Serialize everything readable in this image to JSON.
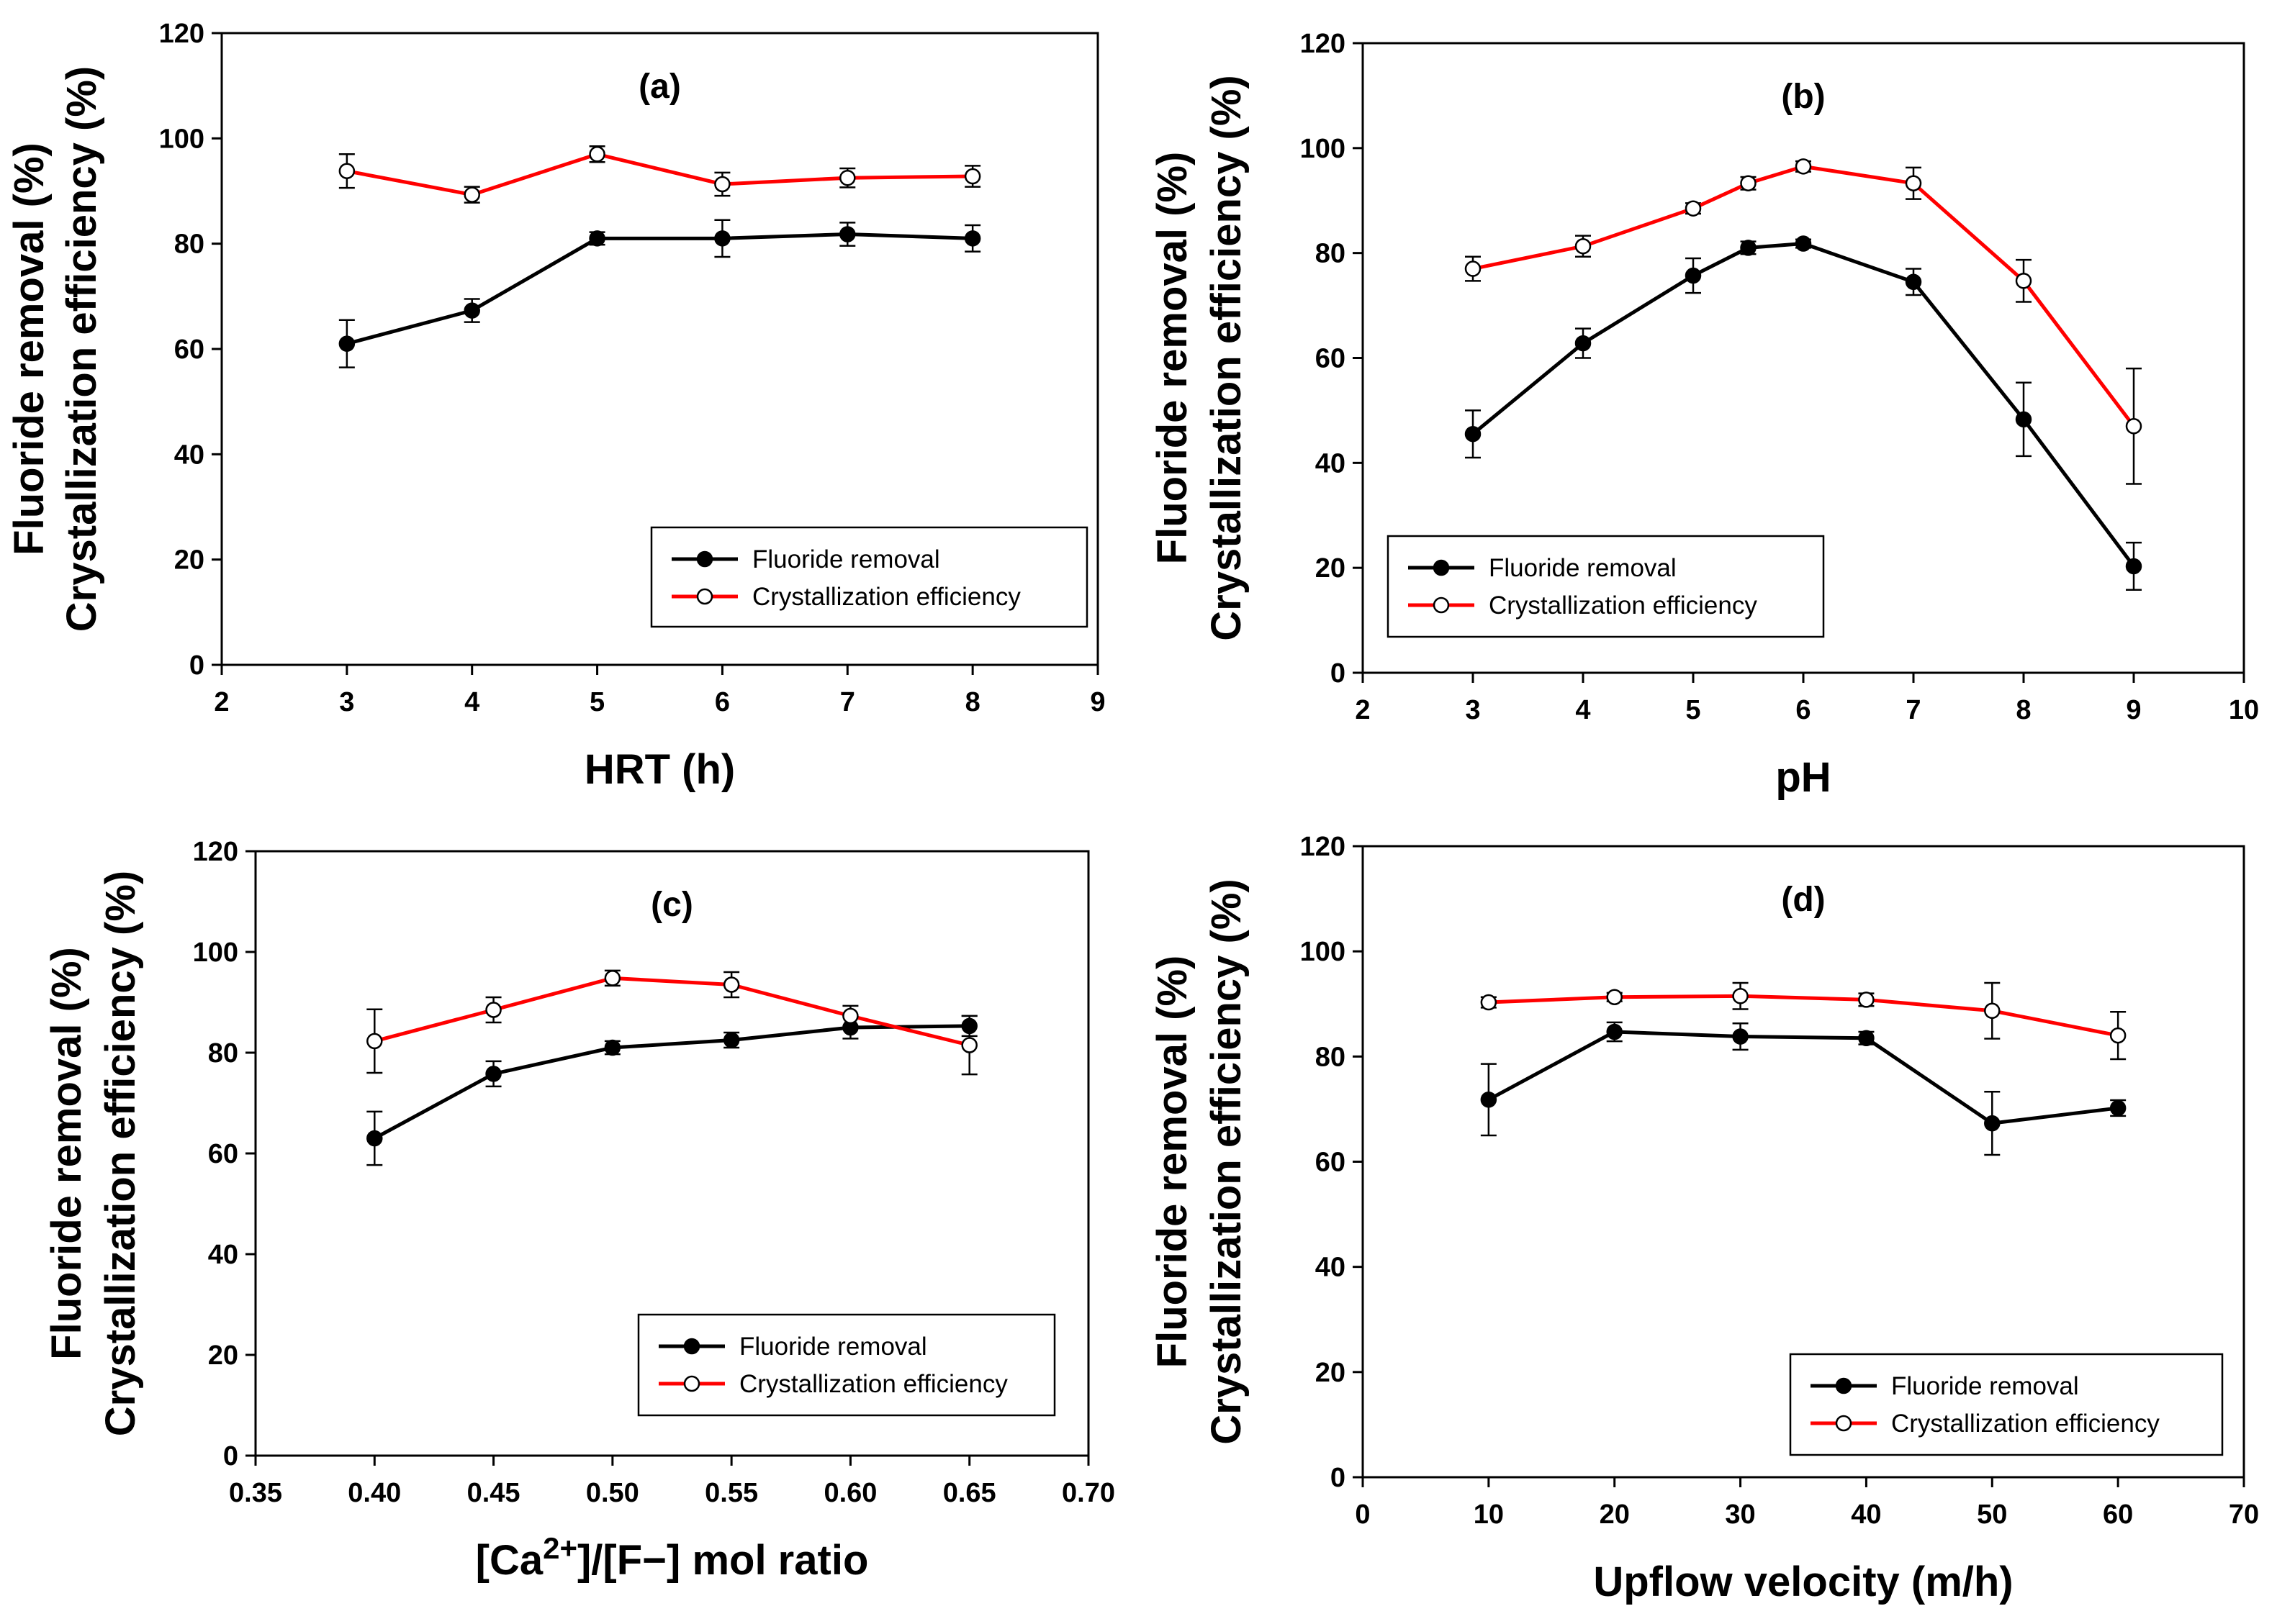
{
  "chart_data": [
    {
      "type": "line",
      "title": "(a)",
      "xlabel": "HRT (h)",
      "ylabel": [
        "Fluoride removal (%)",
        "Crystallization efficiency (%)"
      ],
      "xlim": [
        2,
        9
      ],
      "xticks": [
        2,
        3,
        4,
        5,
        6,
        7,
        8,
        9
      ],
      "xtick_labels": [
        "2",
        "3",
        "4",
        "5",
        "6",
        "7",
        "8",
        "9"
      ],
      "ylim": [
        0,
        120
      ],
      "yticks": [
        0,
        20,
        40,
        60,
        80,
        100,
        120
      ],
      "ytick_labels": [
        "0",
        "20",
        "40",
        "60",
        "80",
        "100",
        "120"
      ],
      "legend_position": "lower-right",
      "series": [
        {
          "name": "Fluoride removal",
          "color": "#000000",
          "marker": "filled-circle",
          "x": [
            3,
            4,
            5,
            6,
            7,
            8
          ],
          "y": [
            61,
            67.3,
            81,
            81,
            81.8,
            81
          ],
          "err": [
            4.5,
            2.2,
            1.2,
            3.5,
            2.2,
            2.5
          ]
        },
        {
          "name": "Crystallization efficiency",
          "color": "#ff0000",
          "marker": "open-circle",
          "x": [
            3,
            4,
            5,
            6,
            7,
            8
          ],
          "y": [
            93.8,
            89.3,
            97,
            91.3,
            92.5,
            92.8
          ],
          "err": [
            3.2,
            1.5,
            1.5,
            2.2,
            1.8,
            2.0
          ]
        }
      ]
    },
    {
      "type": "line",
      "title": "(b)",
      "xlabel": "pH",
      "ylabel": [
        "Fluoride removal (%)",
        "Crystallization efficiency (%)"
      ],
      "xlim": [
        2,
        10
      ],
      "xticks": [
        2,
        3,
        4,
        5,
        6,
        7,
        8,
        9,
        10
      ],
      "xtick_labels": [
        "2",
        "3",
        "4",
        "5",
        "6",
        "7",
        "8",
        "9",
        "10"
      ],
      "ylim": [
        0,
        120
      ],
      "yticks": [
        0,
        20,
        40,
        60,
        80,
        100,
        120
      ],
      "ytick_labels": [
        "0",
        "20",
        "40",
        "60",
        "80",
        "100",
        "120"
      ],
      "legend_position": "lower-left",
      "series": [
        {
          "name": "Fluoride removal",
          "color": "#000000",
          "marker": "filled-circle",
          "x": [
            3,
            4,
            5,
            5.5,
            6,
            7,
            8,
            9
          ],
          "y": [
            45.5,
            62.8,
            75.7,
            81,
            81.8,
            74.5,
            48.3,
            20.3
          ],
          "err": [
            4.5,
            2.8,
            3.3,
            1.2,
            0.8,
            2.5,
            7.0,
            4.5
          ]
        },
        {
          "name": "Crystallization efficiency",
          "color": "#ff0000",
          "marker": "open-circle",
          "x": [
            3,
            4,
            5,
            5.5,
            6,
            7,
            8,
            9
          ],
          "y": [
            77,
            81.3,
            88.5,
            93.3,
            96.5,
            93.3,
            74.7,
            47
          ],
          "err": [
            2.3,
            2.0,
            1.0,
            1.2,
            1.0,
            3.0,
            4.0,
            11.0
          ]
        }
      ]
    },
    {
      "type": "line",
      "title": "(c)",
      "xlabel": "[Ca2+]/[F−] mol ratio",
      "xlabel_parts": {
        "pre": "[Ca",
        "sup": "2+",
        "post": "]/[F−] mol ratio"
      },
      "ylabel": [
        "Fluoride removal (%)",
        "Crystallization efficiency (%)"
      ],
      "xlim": [
        0.35,
        0.7
      ],
      "xticks": [
        0.35,
        0.4,
        0.45,
        0.5,
        0.55,
        0.6,
        0.65,
        0.7
      ],
      "xtick_labels": [
        "0.35",
        "0.40",
        "0.45",
        "0.50",
        "0.55",
        "0.60",
        "0.65",
        "0.70"
      ],
      "ylim": [
        0,
        120
      ],
      "yticks": [
        0,
        20,
        40,
        60,
        80,
        100,
        120
      ],
      "ytick_labels": [
        "0",
        "20",
        "40",
        "60",
        "80",
        "100",
        "120"
      ],
      "legend_position": "lower-right",
      "series": [
        {
          "name": "Fluoride removal",
          "color": "#000000",
          "marker": "filled-circle",
          "x": [
            0.4,
            0.45,
            0.5,
            0.55,
            0.6,
            0.65
          ],
          "y": [
            63,
            75.8,
            81,
            82.5,
            85,
            85.3
          ],
          "err": [
            5.3,
            2.5,
            1.3,
            1.5,
            2.2,
            2.0
          ]
        },
        {
          "name": "Crystallization efficiency",
          "color": "#ff0000",
          "marker": "open-circle",
          "x": [
            0.4,
            0.45,
            0.5,
            0.55,
            0.6,
            0.65
          ],
          "y": [
            82.3,
            88.5,
            94.8,
            93.5,
            87.3,
            81.5
          ],
          "err": [
            6.3,
            2.5,
            1.5,
            2.5,
            2.0,
            5.8
          ]
        }
      ]
    },
    {
      "type": "line",
      "title": "(d)",
      "xlabel": "Upflow velocity (m/h)",
      "ylabel": [
        "Fluoride removal (%)",
        "Crystallization efficiency (%)"
      ],
      "xlim": [
        0,
        70
      ],
      "xticks": [
        0,
        10,
        20,
        30,
        40,
        50,
        60,
        70
      ],
      "xtick_labels": [
        "0",
        "10",
        "20",
        "30",
        "40",
        "50",
        "60",
        "70"
      ],
      "ylim": [
        0,
        120
      ],
      "yticks": [
        0,
        20,
        40,
        60,
        80,
        100,
        120
      ],
      "ytick_labels": [
        "0",
        "20",
        "40",
        "60",
        "80",
        "100",
        "120"
      ],
      "legend_position": "lower-right",
      "series": [
        {
          "name": "Fluoride removal",
          "color": "#000000",
          "marker": "filled-circle",
          "x": [
            10,
            20,
            30,
            40,
            50,
            60
          ],
          "y": [
            71.8,
            84.7,
            83.8,
            83.5,
            67.3,
            70.2
          ],
          "err": [
            6.8,
            1.8,
            2.5,
            1.2,
            6.0,
            1.5
          ]
        },
        {
          "name": "Crystallization efficiency",
          "color": "#ff0000",
          "marker": "open-circle",
          "x": [
            10,
            20,
            30,
            40,
            50,
            60
          ],
          "y": [
            90.3,
            91.3,
            91.5,
            90.8,
            88.7,
            84
          ],
          "err": [
            1.0,
            0.8,
            2.5,
            1.2,
            5.3,
            4.5
          ]
        }
      ]
    }
  ]
}
